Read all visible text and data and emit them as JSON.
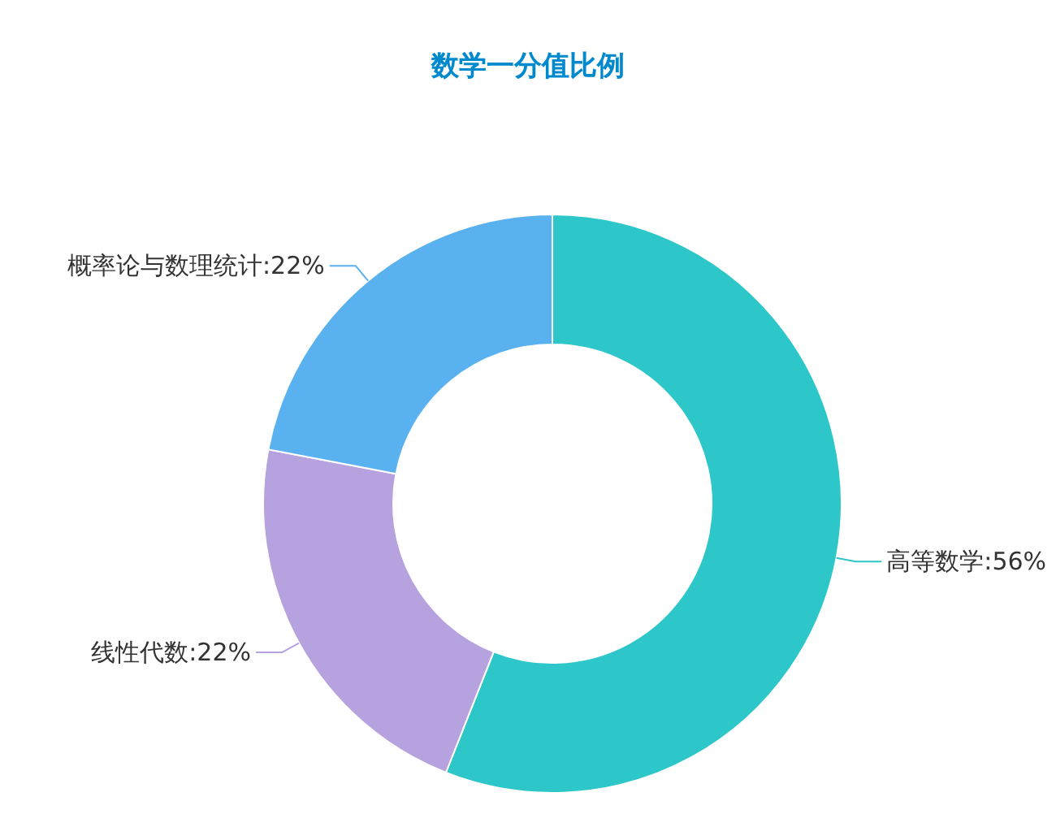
{
  "chart_data": {
    "type": "donut",
    "title": "数学一分值比例",
    "categories": [
      "高等数学",
      "线性代数",
      "概率论与数理统计"
    ],
    "values": [
      56,
      22,
      22
    ],
    "value_labels": [
      "56%",
      "22%",
      "22%"
    ],
    "colors": [
      "#2ec7c9",
      "#b6a2de",
      "#5ab1ef"
    ],
    "legend": false
  }
}
